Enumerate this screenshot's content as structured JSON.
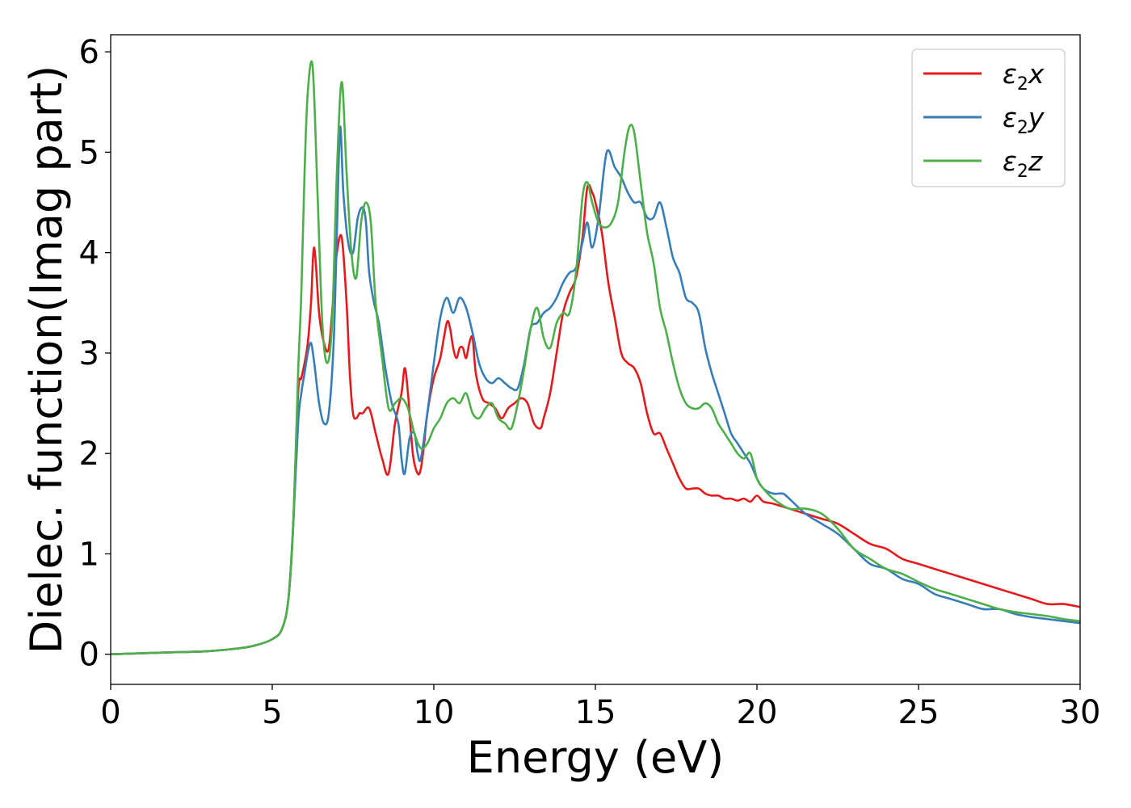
{
  "chart_data": {
    "type": "line",
    "title": "",
    "xlabel": "Energy (eV)",
    "ylabel": "Dielec. function(Imag part)",
    "xlim": [
      0,
      30
    ],
    "ylim": [
      -0.3,
      6.17
    ],
    "xticks": [
      0,
      5,
      10,
      15,
      20,
      25,
      30
    ],
    "yticks": [
      0,
      1,
      2,
      3,
      4,
      5,
      6
    ],
    "grid": false,
    "legend_position": "top-right",
    "series": [
      {
        "name": "ε2x",
        "legend": {
          "main": "ε",
          "sub": "2",
          "suffix": "x"
        },
        "color": "#e41a1c",
        "x": [
          0,
          1,
          2,
          3,
          4,
          4.5,
          5,
          5.3,
          5.5,
          5.65,
          5.8,
          5.9,
          6.0,
          6.1,
          6.2,
          6.3,
          6.45,
          6.6,
          6.75,
          6.9,
          7.0,
          7.15,
          7.3,
          7.4,
          7.5,
          7.6,
          7.7,
          7.8,
          8.0,
          8.2,
          8.4,
          8.6,
          8.8,
          9.0,
          9.1,
          9.2,
          9.35,
          9.5,
          9.6,
          9.7,
          9.8,
          10.0,
          10.2,
          10.4,
          10.5,
          10.6,
          10.7,
          10.8,
          10.9,
          11.0,
          11.1,
          11.2,
          11.3,
          11.5,
          11.7,
          11.9,
          12.1,
          12.3,
          12.5,
          12.7,
          12.9,
          13.1,
          13.3,
          13.4,
          13.6,
          13.8,
          14.0,
          14.2,
          14.4,
          14.6,
          14.75,
          14.9,
          15.0,
          15.2,
          15.4,
          15.6,
          15.8,
          16.0,
          16.2,
          16.4,
          16.6,
          16.8,
          17.0,
          17.2,
          17.4,
          17.6,
          17.8,
          18.0,
          18.2,
          18.4,
          18.6,
          18.8,
          19.0,
          19.2,
          19.4,
          19.6,
          19.8,
          20.0,
          20.2,
          20.5,
          21.0,
          21.5,
          22.0,
          22.5,
          23.0,
          23.5,
          24.0,
          24.5,
          25.0,
          25.5,
          26.0,
          26.5,
          27.0,
          27.5,
          28.0,
          28.5,
          29.0,
          29.5,
          30.0
        ],
        "y": [
          0.0,
          0.01,
          0.02,
          0.03,
          0.06,
          0.09,
          0.15,
          0.25,
          0.55,
          1.3,
          2.6,
          2.75,
          2.9,
          3.1,
          3.5,
          4.05,
          3.4,
          3.1,
          3.05,
          3.6,
          4.0,
          4.15,
          3.5,
          2.8,
          2.4,
          2.35,
          2.4,
          2.4,
          2.45,
          2.2,
          1.95,
          1.8,
          2.3,
          2.6,
          2.85,
          2.6,
          2.0,
          1.8,
          1.85,
          2.1,
          2.4,
          2.75,
          2.95,
          3.3,
          3.25,
          3.05,
          2.95,
          3.05,
          3.05,
          2.95,
          3.1,
          3.15,
          2.8,
          2.55,
          2.5,
          2.45,
          2.35,
          2.45,
          2.5,
          2.55,
          2.5,
          2.3,
          2.25,
          2.35,
          2.6,
          3.0,
          3.4,
          3.6,
          3.75,
          4.15,
          4.65,
          4.6,
          4.5,
          4.2,
          3.7,
          3.35,
          3.0,
          2.9,
          2.85,
          2.7,
          2.4,
          2.2,
          2.2,
          2.05,
          1.9,
          1.75,
          1.65,
          1.65,
          1.65,
          1.6,
          1.58,
          1.58,
          1.55,
          1.55,
          1.53,
          1.55,
          1.52,
          1.58,
          1.52,
          1.5,
          1.45,
          1.4,
          1.35,
          1.3,
          1.2,
          1.1,
          1.05,
          0.95,
          0.9,
          0.85,
          0.8,
          0.75,
          0.7,
          0.65,
          0.6,
          0.55,
          0.5,
          0.5,
          0.47
        ]
      },
      {
        "name": "ε2y",
        "legend": {
          "main": "ε",
          "sub": "2",
          "suffix": "y"
        },
        "color": "#377eb8",
        "x": [
          0,
          1,
          2,
          3,
          4,
          4.5,
          5,
          5.3,
          5.5,
          5.65,
          5.8,
          5.9,
          6.0,
          6.1,
          6.2,
          6.3,
          6.45,
          6.6,
          6.75,
          6.9,
          7.0,
          7.1,
          7.2,
          7.35,
          7.5,
          7.65,
          7.8,
          7.9,
          8.0,
          8.15,
          8.3,
          8.5,
          8.7,
          8.9,
          9.0,
          9.1,
          9.25,
          9.4,
          9.5,
          9.6,
          9.8,
          10.0,
          10.2,
          10.4,
          10.6,
          10.8,
          11.0,
          11.2,
          11.4,
          11.6,
          11.8,
          12.0,
          12.2,
          12.4,
          12.6,
          12.8,
          13.0,
          13.2,
          13.4,
          13.6,
          13.8,
          14.0,
          14.2,
          14.4,
          14.6,
          14.75,
          14.9,
          15.1,
          15.35,
          15.6,
          15.8,
          16.0,
          16.2,
          16.4,
          16.6,
          16.8,
          17.0,
          17.2,
          17.4,
          17.6,
          17.8,
          18.0,
          18.2,
          18.4,
          18.6,
          18.8,
          19.0,
          19.2,
          19.4,
          19.6,
          19.8,
          20.0,
          20.2,
          20.5,
          20.8,
          21.0,
          21.5,
          22.0,
          22.5,
          23.0,
          23.5,
          24.0,
          24.5,
          25.0,
          25.5,
          26.0,
          26.5,
          27.0,
          27.5,
          28.0,
          28.5,
          29.0,
          29.5,
          30.0
        ],
        "y": [
          0.0,
          0.01,
          0.02,
          0.03,
          0.06,
          0.09,
          0.15,
          0.25,
          0.55,
          1.3,
          2.3,
          2.6,
          2.8,
          3.0,
          3.1,
          2.9,
          2.5,
          2.3,
          2.4,
          3.1,
          4.2,
          5.25,
          4.6,
          4.1,
          4.0,
          4.35,
          4.45,
          4.3,
          3.8,
          3.5,
          3.3,
          2.85,
          2.5,
          2.3,
          1.95,
          1.8,
          2.15,
          2.2,
          2.0,
          1.95,
          2.4,
          2.9,
          3.35,
          3.55,
          3.4,
          3.55,
          3.45,
          3.2,
          2.9,
          2.75,
          2.7,
          2.75,
          2.7,
          2.65,
          2.65,
          2.9,
          3.25,
          3.3,
          3.4,
          3.45,
          3.55,
          3.7,
          3.8,
          3.85,
          4.1,
          4.3,
          4.05,
          4.35,
          5.0,
          4.85,
          4.75,
          4.6,
          4.5,
          4.5,
          4.35,
          4.35,
          4.5,
          4.25,
          3.95,
          3.8,
          3.55,
          3.5,
          3.4,
          3.05,
          2.8,
          2.6,
          2.4,
          2.2,
          2.1,
          2.0,
          1.9,
          1.75,
          1.65,
          1.6,
          1.6,
          1.55,
          1.4,
          1.3,
          1.2,
          1.05,
          0.9,
          0.85,
          0.75,
          0.7,
          0.6,
          0.55,
          0.5,
          0.45,
          0.45,
          0.4,
          0.37,
          0.35,
          0.33,
          0.31
        ]
      },
      {
        "name": "ε2z",
        "legend": {
          "main": "ε",
          "sub": "2",
          "suffix": "z"
        },
        "color": "#4daf4a",
        "x": [
          0,
          1,
          2,
          3,
          4,
          4.5,
          5,
          5.3,
          5.5,
          5.65,
          5.8,
          5.9,
          6.0,
          6.1,
          6.25,
          6.4,
          6.55,
          6.7,
          6.85,
          7.0,
          7.15,
          7.3,
          7.45,
          7.6,
          7.75,
          7.9,
          8.05,
          8.2,
          8.4,
          8.6,
          8.8,
          9.0,
          9.2,
          9.4,
          9.6,
          9.8,
          10.0,
          10.2,
          10.4,
          10.6,
          10.8,
          11.0,
          11.2,
          11.4,
          11.6,
          11.8,
          12.0,
          12.2,
          12.4,
          12.6,
          12.8,
          13.0,
          13.2,
          13.4,
          13.6,
          13.8,
          14.0,
          14.2,
          14.4,
          14.6,
          14.75,
          14.9,
          15.1,
          15.3,
          15.5,
          15.7,
          15.9,
          16.05,
          16.2,
          16.4,
          16.6,
          16.8,
          17.0,
          17.2,
          17.4,
          17.6,
          17.8,
          18.0,
          18.2,
          18.4,
          18.6,
          18.8,
          19.0,
          19.2,
          19.4,
          19.6,
          19.8,
          20.0,
          20.2,
          20.5,
          21.0,
          21.5,
          22.0,
          22.5,
          23.0,
          23.5,
          24.0,
          24.5,
          25.0,
          25.5,
          26.0,
          26.5,
          27.0,
          27.5,
          28.0,
          28.5,
          29.0,
          29.5,
          30.0
        ],
        "y": [
          0.0,
          0.01,
          0.02,
          0.03,
          0.06,
          0.09,
          0.15,
          0.25,
          0.55,
          1.3,
          2.8,
          3.6,
          4.8,
          5.6,
          5.85,
          4.6,
          3.3,
          2.9,
          3.3,
          4.8,
          5.7,
          4.8,
          4.0,
          3.75,
          4.3,
          4.5,
          4.3,
          3.5,
          2.95,
          2.45,
          2.5,
          2.55,
          2.45,
          2.2,
          2.05,
          2.1,
          2.25,
          2.35,
          2.5,
          2.55,
          2.5,
          2.6,
          2.4,
          2.35,
          2.45,
          2.5,
          2.35,
          2.3,
          2.25,
          2.5,
          2.85,
          3.25,
          3.45,
          3.15,
          3.05,
          3.3,
          3.4,
          3.4,
          3.8,
          4.55,
          4.7,
          4.5,
          4.3,
          4.25,
          4.3,
          4.5,
          5.0,
          5.25,
          5.2,
          4.7,
          4.2,
          3.9,
          3.45,
          3.2,
          2.9,
          2.65,
          2.5,
          2.45,
          2.45,
          2.5,
          2.45,
          2.3,
          2.2,
          2.1,
          2.0,
          1.95,
          2.0,
          1.75,
          1.65,
          1.55,
          1.45,
          1.45,
          1.4,
          1.25,
          1.05,
          0.95,
          0.85,
          0.8,
          0.72,
          0.65,
          0.6,
          0.55,
          0.5,
          0.45,
          0.42,
          0.4,
          0.38,
          0.35,
          0.33
        ]
      }
    ]
  }
}
